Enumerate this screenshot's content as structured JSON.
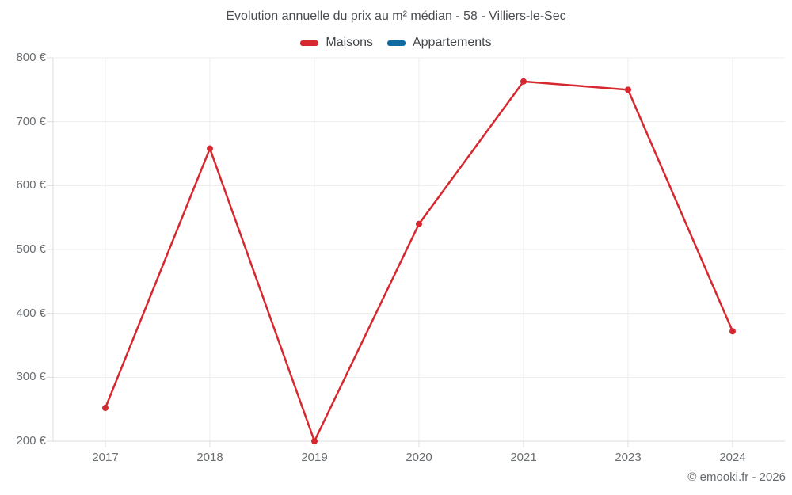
{
  "title": "Evolution annuelle du prix au m² médian - 58 - Villiers-le-Sec",
  "legend": {
    "items": [
      {
        "label": "Maisons",
        "color": "#d7282f"
      },
      {
        "label": "Appartements",
        "color": "#0e6aa0"
      }
    ]
  },
  "footer": {
    "copyright": "© emooki.fr - 2026"
  },
  "chart_data": {
    "type": "line",
    "categories": [
      "2017",
      "2018",
      "2019",
      "2020",
      "2021",
      "2023",
      "2024"
    ],
    "series": [
      {
        "name": "Maisons",
        "color": "#d7282f",
        "values": [
          252,
          658,
          200,
          540,
          763,
          750,
          372
        ]
      },
      {
        "name": "Appartements",
        "color": "#0e6aa0",
        "values": []
      }
    ],
    "title": "Evolution annuelle du prix au m² médian - 58 - Villiers-le-Sec",
    "xlabel": "",
    "ylabel": "",
    "ylim": [
      200,
      800
    ],
    "y_ticks": [
      {
        "value": 200,
        "label": "200 €"
      },
      {
        "value": 300,
        "label": "300 €"
      },
      {
        "value": 400,
        "label": "400 €"
      },
      {
        "value": 500,
        "label": "500 €"
      },
      {
        "value": 600,
        "label": "600 €"
      },
      {
        "value": 700,
        "label": "700 €"
      },
      {
        "value": 800,
        "label": "800 €"
      }
    ],
    "grid": true,
    "legend_position": "top"
  }
}
